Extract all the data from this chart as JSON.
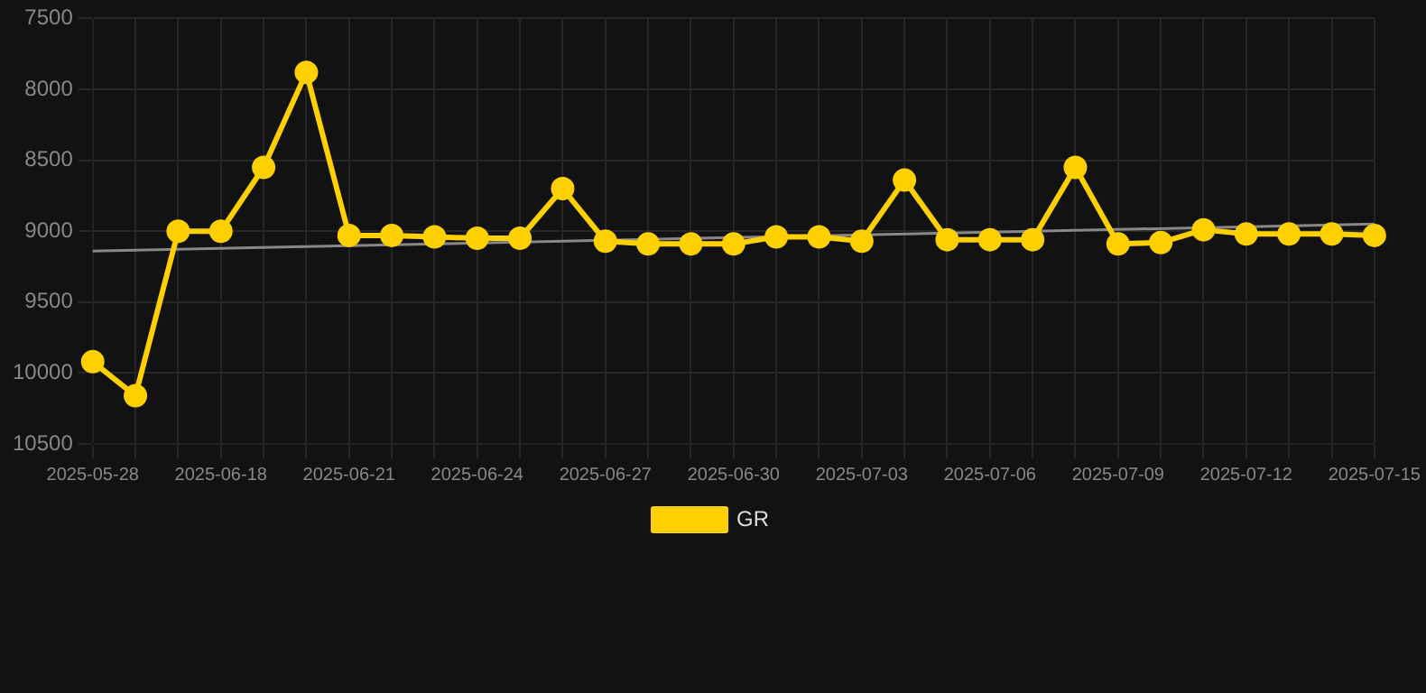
{
  "chart_data": {
    "type": "line",
    "categories": [
      "2025-05-28",
      null,
      null,
      "2025-06-18",
      null,
      null,
      "2025-06-21",
      null,
      null,
      "2025-06-24",
      null,
      null,
      "2025-06-27",
      null,
      null,
      "2025-06-30",
      null,
      null,
      "2025-07-03",
      null,
      null,
      "2025-07-06",
      null,
      null,
      "2025-07-09",
      null,
      null,
      "2025-07-12",
      null,
      null,
      "2025-07-15"
    ],
    "series": [
      {
        "name": "GR",
        "color": "#ffd000",
        "marker": "circle",
        "values": [
          9920,
          10160,
          9000,
          9000,
          8550,
          7880,
          9030,
          9030,
          9040,
          9050,
          9050,
          8700,
          9070,
          9090,
          9090,
          9090,
          9040,
          9040,
          9070,
          8640,
          9060,
          9060,
          9060,
          8550,
          9090,
          9080,
          8990,
          9020,
          9020,
          9020,
          9030
        ]
      },
      {
        "color": "#888888",
        "marker": "none",
        "values": [
          9140,
          null,
          null,
          null,
          null,
          null,
          null,
          null,
          null,
          null,
          null,
          null,
          null,
          null,
          null,
          null,
          null,
          null,
          null,
          null,
          null,
          null,
          null,
          null,
          null,
          null,
          null,
          null,
          null,
          null,
          8950
        ]
      }
    ],
    "ylim": [
      10500,
      7500
    ],
    "yticks": [
      7500,
      8000,
      8500,
      9000,
      9500,
      10000,
      10500
    ],
    "grid": true,
    "legend": "bottom"
  }
}
